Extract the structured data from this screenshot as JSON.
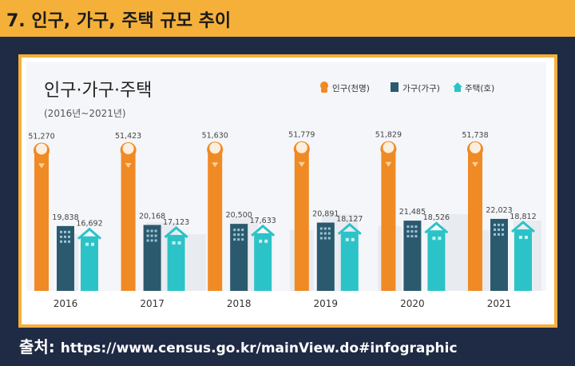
{
  "header": {
    "title": "7. 인구, 가구, 주택 규모 추이"
  },
  "source": {
    "label": "출처:",
    "url": "https://www.census.go.kr/mainView.do#infographic"
  },
  "chart_data": {
    "type": "bar",
    "title": "인구·가구·주택",
    "subtitle": "(2016년~2021년)",
    "categories": [
      "2016",
      "2017",
      "2018",
      "2019",
      "2020",
      "2021"
    ],
    "series": [
      {
        "name": "인구(천명)",
        "color": "#f08a24",
        "icon": "person-icon",
        "values": [
          51270,
          51423,
          51630,
          51779,
          51829,
          51738
        ]
      },
      {
        "name": "가구(가구)",
        "color": "#2b5a6e",
        "icon": "building-icon",
        "values": [
          19838,
          20168,
          20500,
          20891,
          21485,
          22023
        ]
      },
      {
        "name": "주택(호)",
        "color": "#2bc3c8",
        "icon": "house-icon",
        "values": [
          16692,
          17123,
          17633,
          18127,
          18526,
          18812
        ]
      }
    ],
    "grid": false,
    "legend_position": "top-right"
  }
}
